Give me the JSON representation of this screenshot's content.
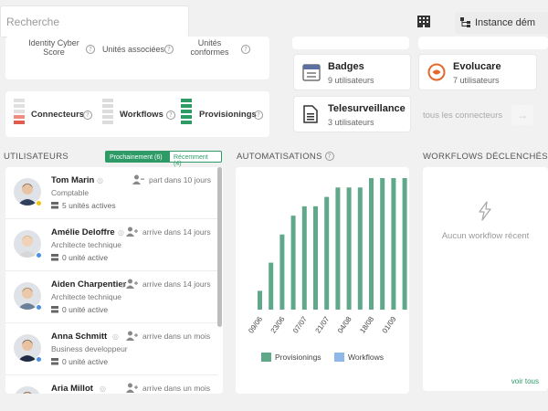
{
  "topbar": {
    "search_placeholder": "Recherche",
    "instance_label": "Instance dém"
  },
  "kpi_top": {
    "cols": [
      {
        "label": "Identity Cyber Score"
      },
      {
        "label": "Unités associées"
      },
      {
        "label": "Unités conformes"
      }
    ]
  },
  "kpi_bottom": {
    "items": [
      {
        "label": "Connecteurs"
      },
      {
        "label": "Workflows"
      },
      {
        "label": "Provisionings"
      }
    ]
  },
  "connectors": [
    {
      "name": "Badges",
      "sub": "9 utilisateurs",
      "icon": "badge-icon"
    },
    {
      "name": "Evolucare",
      "sub": "7 utilisateurs",
      "icon": "evolucare-logo"
    },
    {
      "name": "Telesurveillance",
      "sub": "3 utilisateurs",
      "icon": "document-icon"
    }
  ],
  "all_connectors_label": "tous les connecteurs",
  "sections": {
    "users": "UTILISATEURS",
    "automations": "AUTOMATISATIONS",
    "workflows": "WORKFLOWS DÉCLENCHÉS"
  },
  "user_tabs": {
    "upcoming": "Prochainement (6)",
    "recent": "Récemment (4)"
  },
  "users": [
    {
      "name": "Tom Marin",
      "role": "Comptable",
      "units": "5 unités actives",
      "status": "part dans 10 jours",
      "dot": "#f1c40f"
    },
    {
      "name": "Amélie Deloffre",
      "role": "Architecte technique",
      "units": "0 unité active",
      "status": "arrive dans 14 jours",
      "dot": "#4a90e2"
    },
    {
      "name": "Aiden Charpentier",
      "role": "Architecte technique",
      "units": "0 unité active",
      "status": "arrive dans 14 jours",
      "dot": "#4a90e2"
    },
    {
      "name": "Anna Schmitt",
      "role": "Business developpeur",
      "units": "0 unité active",
      "status": "arrive dans un mois",
      "dot": "#4a90e2"
    },
    {
      "name": "Aria Millot",
      "role": "",
      "units": "",
      "status": "arrive dans un mois",
      "dot": "#4a90e2"
    }
  ],
  "workflows_panel": {
    "empty_text": "Aucun workflow récent",
    "more_link": "voir tous"
  },
  "colors": {
    "accent": "#2e9b67",
    "provisioning_bar": "#5fa88a",
    "workflow_bar": "#8fb7e8"
  },
  "chart_data": {
    "type": "bar",
    "categories": [
      "09/06",
      "",
      "23/06",
      "",
      "07/07",
      "",
      "21/07",
      "",
      "04/08",
      "",
      "18/08",
      "",
      "01/09",
      ""
    ],
    "tick_labels": [
      "09/06",
      "23/06",
      "07/07",
      "21/07",
      "04/08",
      "18/08",
      "01/09"
    ],
    "series": [
      {
        "name": "Provisionings",
        "values": [
          2,
          5,
          8,
          10,
          11,
          11,
          12,
          13,
          13,
          13,
          14,
          14,
          14,
          14
        ]
      },
      {
        "name": "Workflows",
        "values": [
          0,
          0,
          0,
          0,
          0,
          0,
          0,
          0,
          0,
          0,
          0,
          0,
          0,
          0
        ]
      }
    ],
    "legend": "bottom",
    "grid": false
  }
}
